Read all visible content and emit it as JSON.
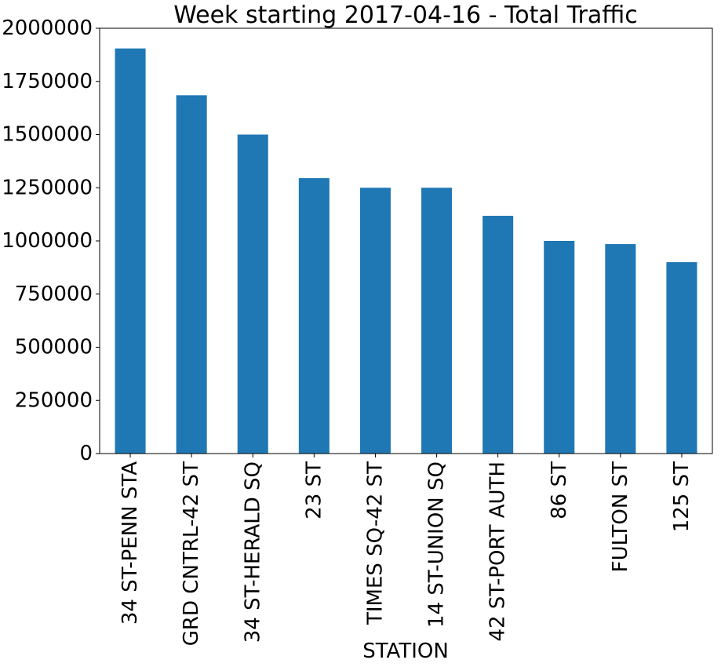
{
  "chart_data": {
    "type": "bar",
    "title": "Week starting 2017-04-16 - Total Traffic",
    "xlabel": "STATION",
    "ylabel": "",
    "categories": [
      "34 ST-PENN STA",
      "GRD CNTRL-42 ST",
      "34 ST-HERALD SQ",
      "23 ST",
      "TIMES SQ-42 ST",
      "14 ST-UNION SQ",
      "42 ST-PORT AUTH",
      "86 ST",
      "FULTON ST",
      "125 ST"
    ],
    "values": [
      1905000,
      1685000,
      1500000,
      1295000,
      1250000,
      1250000,
      1118000,
      1000000,
      985000,
      900000
    ],
    "ylim": [
      0,
      2000000
    ],
    "yticks": [
      "0",
      "250000",
      "500000",
      "750000",
      "1000000",
      "1250000",
      "1500000",
      "1750000",
      "2000000"
    ],
    "bar_color": "#1f77b4",
    "grid": false,
    "legend": "none"
  }
}
